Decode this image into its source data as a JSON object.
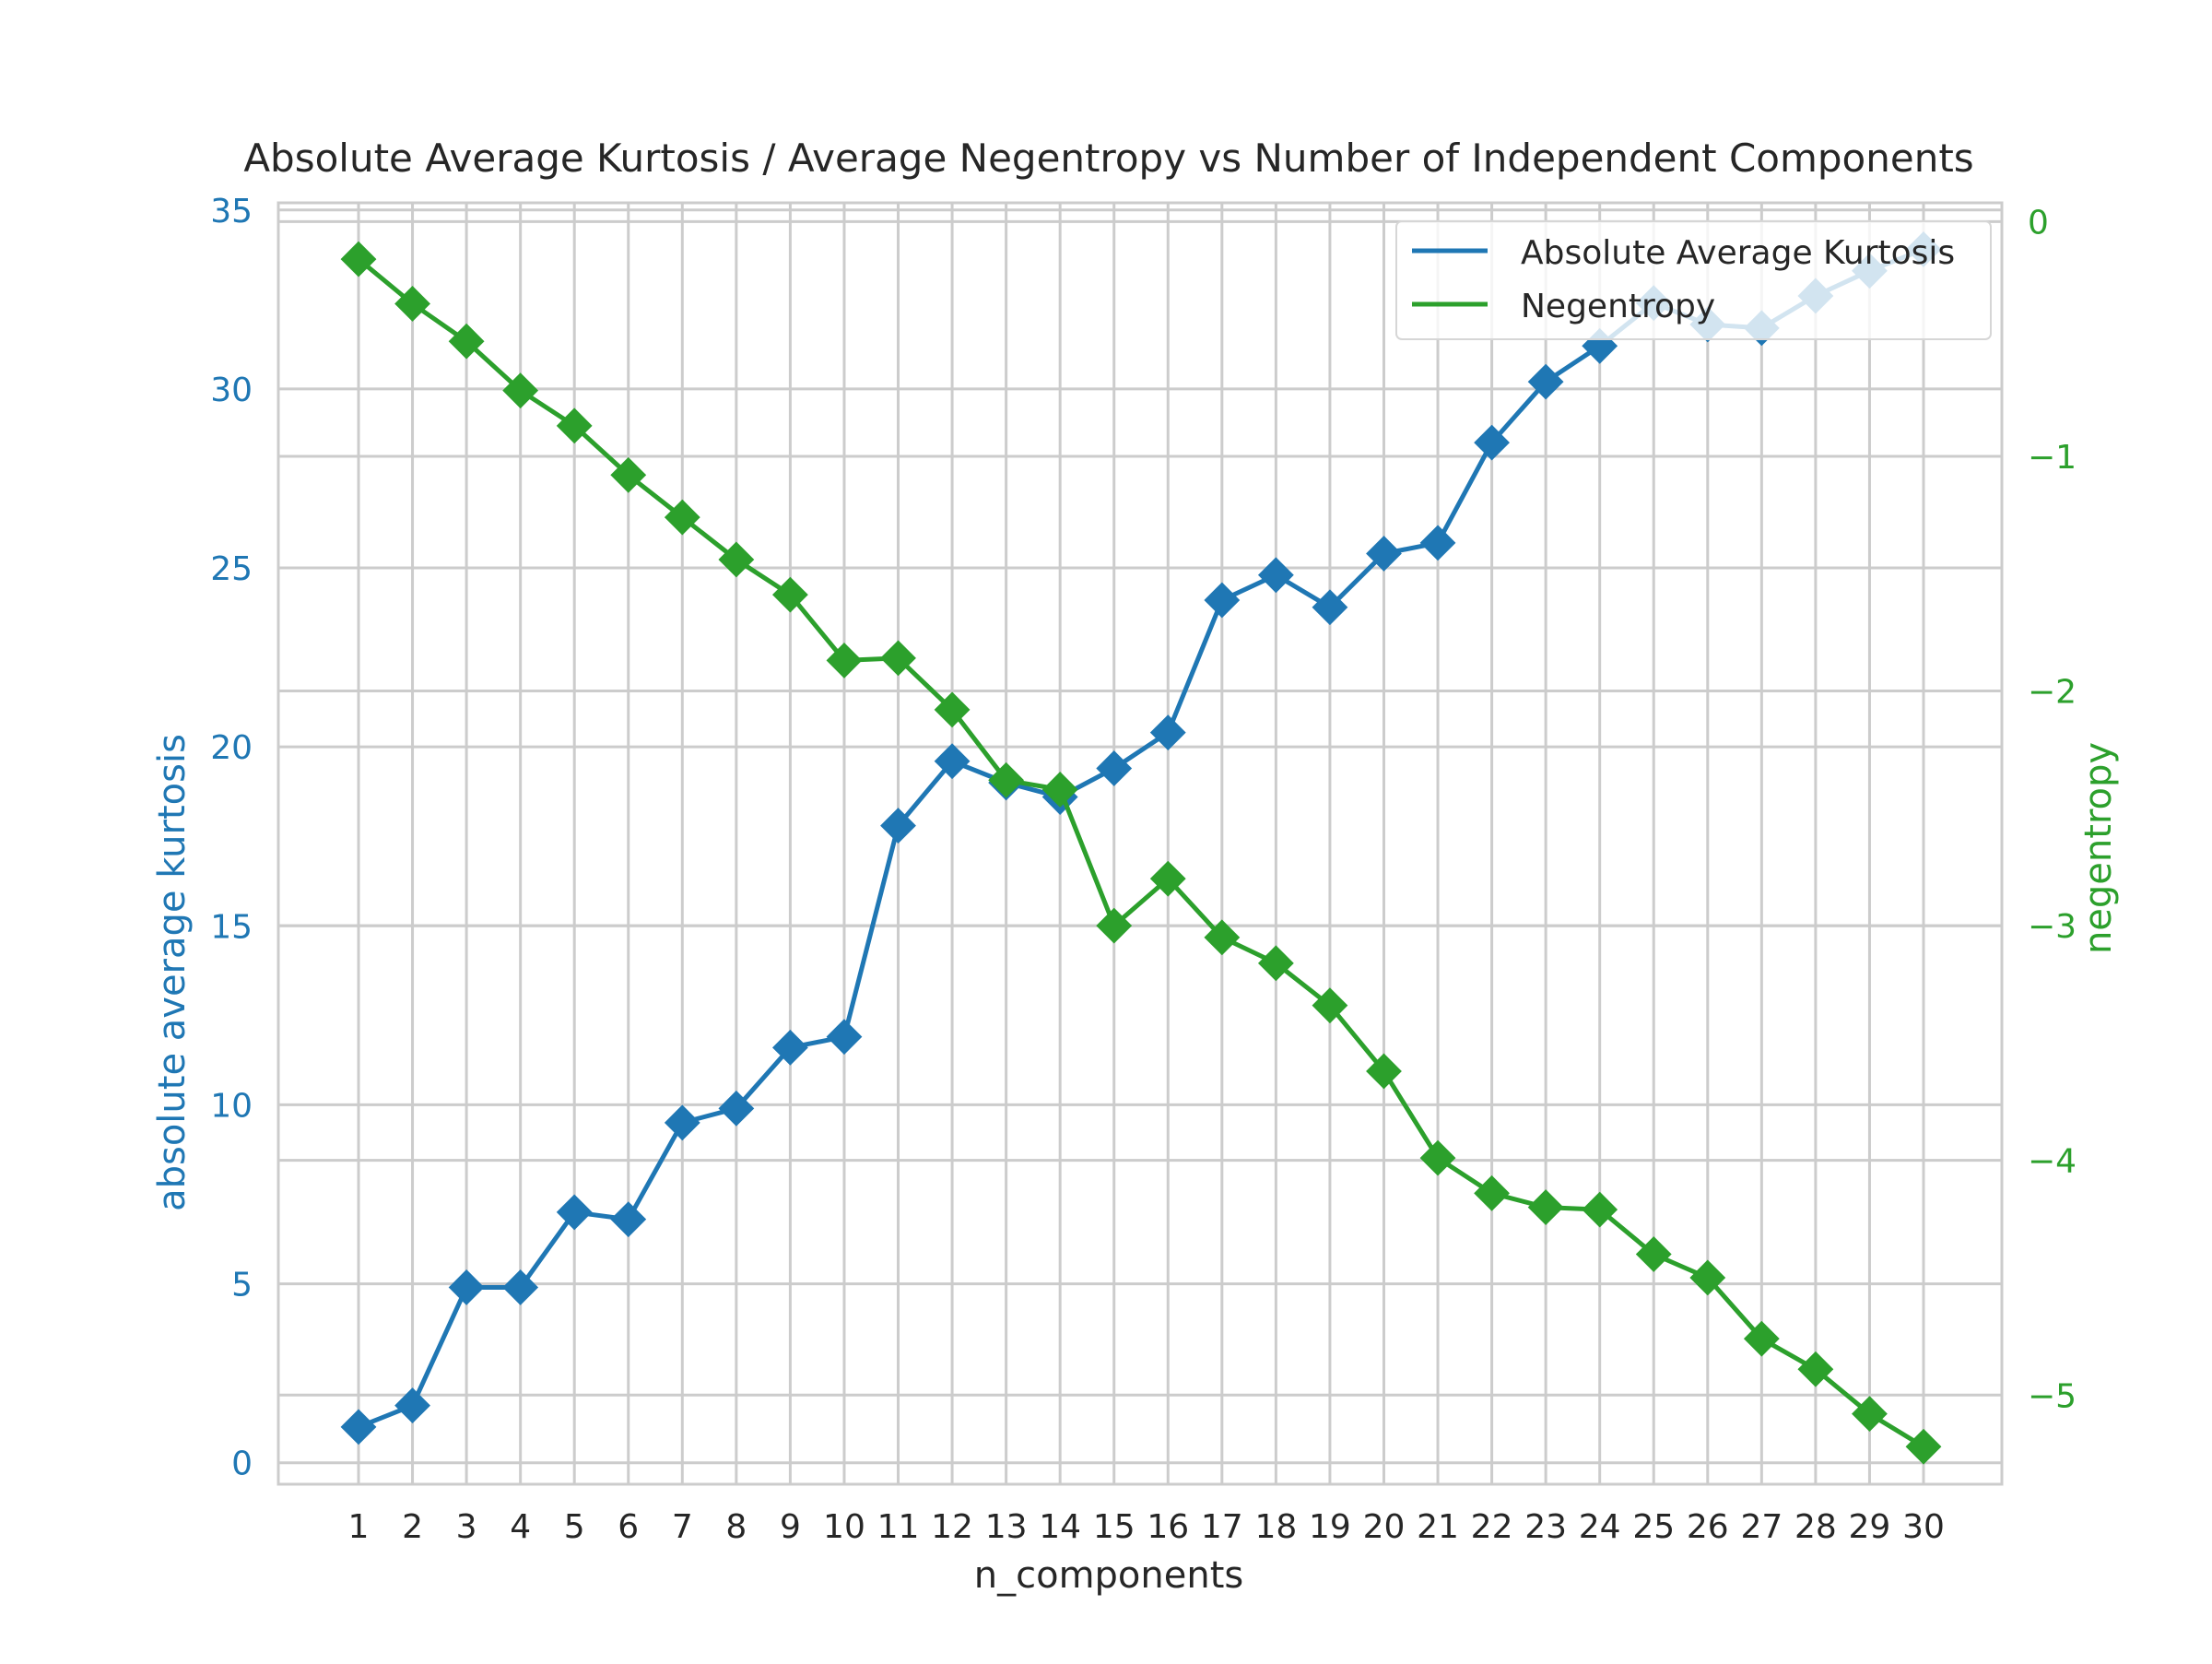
{
  "chart_data": {
    "type": "line",
    "title": "Absolute Average Kurtosis / Average Negentropy vs Number of Independent Components",
    "xlabel": "n_components",
    "ylabel_left": "absolute average kurtosis",
    "ylabel_right": "negentropy",
    "x": [
      1,
      2,
      3,
      4,
      5,
      6,
      7,
      8,
      9,
      10,
      11,
      12,
      13,
      14,
      15,
      16,
      17,
      18,
      19,
      20,
      21,
      22,
      23,
      24,
      25,
      26,
      27,
      28,
      29,
      30
    ],
    "x_tick_labels": [
      "1",
      "2",
      "3",
      "4",
      "5",
      "6",
      "7",
      "8",
      "9",
      "10",
      "11",
      "12",
      "13",
      "14",
      "15",
      "16",
      "17",
      "18",
      "19",
      "20",
      "21",
      "22",
      "23",
      "24",
      "25",
      "26",
      "27",
      "28",
      "29",
      "30"
    ],
    "left_ylim": [
      -0.6,
      35.2
    ],
    "left_yticks": [
      0,
      5,
      10,
      15,
      20,
      25,
      30,
      35
    ],
    "left_ytick_labels": [
      "0",
      "5",
      "10",
      "15",
      "20",
      "25",
      "30",
      "35"
    ],
    "right_ylim": [
      -5.38,
      0.08
    ],
    "right_yticks": [
      0,
      -1,
      -2,
      -3,
      -4,
      -5
    ],
    "right_ytick_labels": [
      "0",
      "−1",
      "−2",
      "−3",
      "−4",
      "−5"
    ],
    "grid": true,
    "legend_position": "top-right",
    "series": [
      {
        "name": "Absolute Average Kurtosis",
        "axis": "left",
        "color": "#1f77b4",
        "marker": "diamond",
        "values": [
          1.0,
          1.6,
          4.9,
          4.9,
          7.0,
          6.8,
          9.5,
          9.9,
          11.6,
          11.9,
          17.8,
          19.6,
          19.0,
          18.6,
          19.4,
          20.4,
          24.1,
          24.8,
          23.9,
          25.4,
          25.7,
          28.5,
          30.2,
          31.2,
          32.4,
          31.8,
          31.7,
          32.6,
          33.3,
          33.9
        ]
      },
      {
        "name": "Negentropy",
        "axis": "right",
        "color": "#2ca02c",
        "marker": "diamond",
        "values": [
          -0.16,
          -0.35,
          -0.51,
          -0.72,
          -0.87,
          -1.08,
          -1.26,
          -1.44,
          -1.59,
          -1.87,
          -1.86,
          -2.08,
          -2.38,
          -2.42,
          -3.0,
          -2.8,
          -3.05,
          -3.16,
          -3.34,
          -3.62,
          -3.99,
          -4.14,
          -4.2,
          -4.21,
          -4.4,
          -4.5,
          -4.76,
          -4.89,
          -5.08,
          -5.22
        ]
      }
    ]
  }
}
